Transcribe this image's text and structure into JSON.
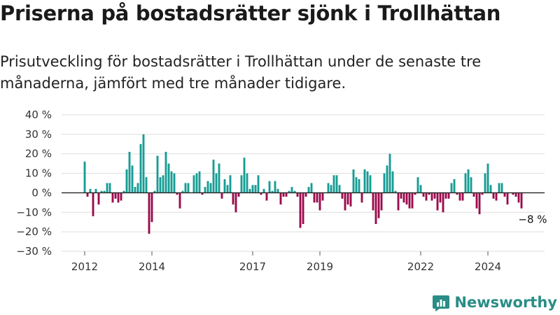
{
  "title": "Priserna på bostadsrätter sjönk i Trollhättan",
  "subtitle": "Prisutveckling för bostadsrätter i Trollhättan under de senaste tre månaderna, jämfört med tre månader tidigare.",
  "brand": "Newsworthy",
  "colors": {
    "positive": "#169c94",
    "negative": "#9b0b4d",
    "grid": "#dddddd",
    "zero": "#222222",
    "brand": "#2a8d86"
  },
  "chart_data": {
    "type": "bar",
    "title": "",
    "xlabel": "",
    "ylabel": "",
    "ylim": [
      -30,
      40
    ],
    "y_ticks": [
      40,
      30,
      20,
      10,
      0,
      -10,
      -20,
      -30
    ],
    "y_tick_labels": [
      "40 %",
      "30 %",
      "20 %",
      "10 %",
      "0 %",
      "−10 %",
      "−20 %",
      "−30 %"
    ],
    "x_ticks": [
      2012,
      2014,
      2017,
      2019,
      2022,
      2024
    ],
    "x_tick_labels": [
      "2012",
      "2014",
      "2017",
      "2019",
      "2022",
      "2024"
    ],
    "start": "2012-01",
    "end": "2025-05",
    "grid": true,
    "values": [
      16,
      -2,
      2,
      -12,
      2,
      -6,
      1,
      1,
      5,
      5,
      -5,
      -3,
      -5,
      -4,
      1,
      12,
      21,
      14,
      3,
      5,
      25,
      30,
      8,
      -21,
      -15,
      1,
      19,
      8,
      9,
      21,
      15,
      11,
      10,
      -1,
      -8,
      1,
      5,
      5,
      0,
      9,
      10,
      11,
      -1,
      3,
      6,
      5,
      17,
      10,
      15,
      -3,
      7,
      4,
      9,
      -6,
      -10,
      -2,
      9,
      18,
      10,
      2,
      4,
      4,
      9,
      -1,
      2,
      -4,
      6,
      1,
      6,
      2,
      -6,
      -2,
      -2,
      1,
      3,
      1,
      -2,
      -18,
      -16,
      -2,
      3,
      5,
      -5,
      -5,
      -9,
      -4,
      0,
      5,
      4,
      9,
      9,
      4,
      -3,
      -9,
      -6,
      -7,
      12,
      8,
      7,
      -5,
      12,
      11,
      9,
      -9,
      -16,
      -13,
      -9,
      10,
      14,
      20,
      11,
      1,
      -9,
      -3,
      -5,
      -6,
      -8,
      -8,
      -1,
      8,
      4,
      -2,
      -4,
      -1,
      -4,
      -3,
      -9,
      -5,
      -10,
      -3,
      -3,
      5,
      7,
      -1,
      -4,
      -4,
      10,
      12,
      8,
      -2,
      -8,
      -11,
      -1,
      10,
      15,
      4,
      -3,
      -4,
      5,
      5,
      -2,
      -6,
      0,
      -1,
      -2,
      -5,
      -8
    ],
    "annotation": {
      "label": "−8 %",
      "value": -8,
      "date": "2025-05"
    }
  }
}
